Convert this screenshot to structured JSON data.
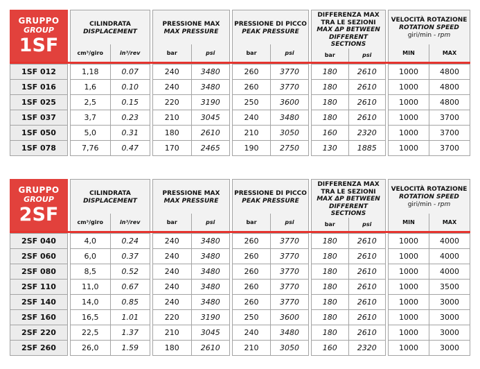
{
  "colors": {
    "accent_red": "#e2413c",
    "red_line": "#e6352f",
    "header_bg": "#f2f2f2",
    "label_bg": "#ececec",
    "border_gray": "#a3a3a3"
  },
  "column_groups": [
    {
      "title_primary": "CILINDRATA",
      "title_secondary": "DISPLACEMENT",
      "units": [
        "cm³/giro",
        "in³/rev"
      ],
      "units_italic": [
        false,
        true
      ]
    },
    {
      "title_primary": "PRESSIONE MAX",
      "title_secondary": "MAX PRESSURE",
      "units": [
        "bar",
        "psi"
      ],
      "units_italic": [
        false,
        true
      ]
    },
    {
      "title_primary": "PRESSIONE DI PICCO",
      "title_secondary": "PEAK PRESSURE",
      "units": [
        "bar",
        "psi"
      ],
      "units_italic": [
        false,
        true
      ]
    },
    {
      "title_primary": "DIFFERENZA MAX\nTRA LE SEZIONI",
      "title_secondary": "MAX ΔP BETWEEN\nDIFFERENT SECTIONS",
      "units": [
        "bar",
        "psi"
      ],
      "units_italic": [
        false,
        true
      ]
    },
    {
      "title_primary": "VELOCITÀ ROTAZIONE",
      "title_secondary": "ROTATION SPEED",
      "subtitle_plain": "giri/min - ",
      "subtitle_italic": "rpm",
      "units": [
        "MIN",
        "MAX"
      ],
      "units_italic": [
        false,
        false
      ]
    }
  ],
  "italic_value_columns": [
    1,
    3,
    5,
    6,
    7
  ],
  "tables": [
    {
      "id": "1sf",
      "badge": {
        "line1": "GRUPPO",
        "line2": "GROUP",
        "code": "1SF"
      },
      "rows": [
        {
          "model": "1SF 012",
          "values": [
            "1,18",
            "0.07",
            "240",
            "3480",
            "260",
            "3770",
            "180",
            "2610",
            "1000",
            "4800"
          ]
        },
        {
          "model": "1SF 016",
          "values": [
            "1,6",
            "0.10",
            "240",
            "3480",
            "260",
            "3770",
            "180",
            "2610",
            "1000",
            "4800"
          ]
        },
        {
          "model": "1SF 025",
          "values": [
            "2,5",
            "0.15",
            "220",
            "3190",
            "250",
            "3600",
            "180",
            "2610",
            "1000",
            "4800"
          ]
        },
        {
          "model": "1SF 037",
          "values": [
            "3,7",
            "0.23",
            "210",
            "3045",
            "240",
            "3480",
            "180",
            "2610",
            "1000",
            "3700"
          ]
        },
        {
          "model": "1SF 050",
          "values": [
            "5,0",
            "0.31",
            "180",
            "2610",
            "210",
            "3050",
            "160",
            "2320",
            "1000",
            "3700"
          ]
        },
        {
          "model": "1SF 078",
          "values": [
            "7,76",
            "0.47",
            "170",
            "2465",
            "190",
            "2750",
            "130",
            "1885",
            "1000",
            "3700"
          ]
        }
      ]
    },
    {
      "id": "2sf",
      "badge": {
        "line1": "GRUPPO",
        "line2": "GROUP",
        "code": "2SF"
      },
      "rows": [
        {
          "model": "2SF 040",
          "values": [
            "4,0",
            "0.24",
            "240",
            "3480",
            "260",
            "3770",
            "180",
            "2610",
            "1000",
            "4000"
          ]
        },
        {
          "model": "2SF 060",
          "values": [
            "6,0",
            "0.37",
            "240",
            "3480",
            "260",
            "3770",
            "180",
            "2610",
            "1000",
            "4000"
          ]
        },
        {
          "model": "2SF 080",
          "values": [
            "8,5",
            "0.52",
            "240",
            "3480",
            "260",
            "3770",
            "180",
            "2610",
            "1000",
            "4000"
          ]
        },
        {
          "model": "2SF 110",
          "values": [
            "11,0",
            "0.67",
            "240",
            "3480",
            "260",
            "3770",
            "180",
            "2610",
            "1000",
            "3500"
          ]
        },
        {
          "model": "2SF 140",
          "values": [
            "14,0",
            "0.85",
            "240",
            "3480",
            "260",
            "3770",
            "180",
            "2610",
            "1000",
            "3000"
          ]
        },
        {
          "model": "2SF 160",
          "values": [
            "16,5",
            "1.01",
            "220",
            "3190",
            "250",
            "3600",
            "180",
            "2610",
            "1000",
            "3000"
          ]
        },
        {
          "model": "2SF 220",
          "values": [
            "22,5",
            "1.37",
            "210",
            "3045",
            "240",
            "3480",
            "180",
            "2610",
            "1000",
            "3000"
          ]
        },
        {
          "model": "2SF 260",
          "values": [
            "26,0",
            "1.59",
            "180",
            "2610",
            "210",
            "3050",
            "160",
            "2320",
            "1000",
            "3000"
          ]
        }
      ]
    }
  ]
}
